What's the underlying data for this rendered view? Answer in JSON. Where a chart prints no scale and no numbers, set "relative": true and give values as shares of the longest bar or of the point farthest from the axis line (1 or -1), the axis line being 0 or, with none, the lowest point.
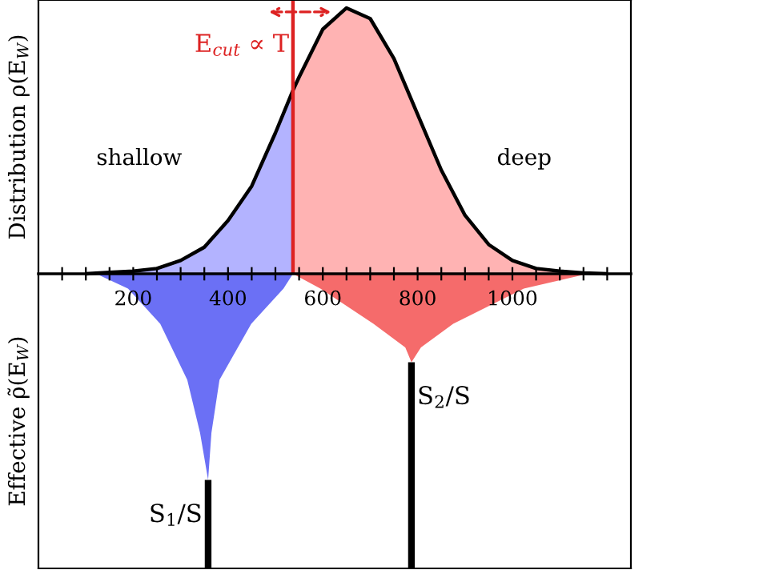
{
  "chart_data": [
    {
      "type": "area",
      "relative": true,
      "ylabel": "Distribution ρ(E$_{W}$)",
      "xlim": [
        0,
        1250
      ],
      "tick_labels": false,
      "grid": false,
      "legend": false,
      "series": [
        {
          "color": "#b3b3ff",
          "x": [
            100,
            150,
            200,
            250,
            300,
            350,
            400,
            450,
            500,
            537
          ],
          "values": [
            0,
            0.005,
            0.01,
            0.02,
            0.05,
            0.1,
            0.2,
            0.33,
            0.53,
            0.69
          ]
        },
        {
          "color": "#ffb3b3",
          "x": [
            537,
            550,
            600,
            650,
            700,
            750,
            800,
            850,
            900,
            950,
            1000,
            1050,
            1100,
            1150,
            1200
          ],
          "values": [
            0.69,
            0.74,
            0.92,
            1.0,
            0.96,
            0.81,
            0.6,
            0.39,
            0.22,
            0.11,
            0.05,
            0.02,
            0.01,
            0.003,
            0
          ]
        },
        {
          "type": "line",
          "color": "#000000",
          "x": [
            100,
            150,
            200,
            250,
            300,
            350,
            400,
            450,
            500,
            537,
            550,
            600,
            650,
            700,
            750,
            800,
            850,
            900,
            950,
            1000,
            1050,
            1100,
            1150,
            1200
          ],
          "values": [
            0,
            0.005,
            0.01,
            0.02,
            0.05,
            0.1,
            0.2,
            0.33,
            0.53,
            0.69,
            0.74,
            0.92,
            1.0,
            0.96,
            0.81,
            0.6,
            0.39,
            0.22,
            0.11,
            0.05,
            0.02,
            0.01,
            0.003,
            0
          ]
        }
      ],
      "ref_lines": [
        {
          "axis": "x",
          "value": 537,
          "label": "E$_{cut}$ ∝ T",
          "color": "#dd2222"
        }
      ],
      "annotations": [
        "shallow",
        "deep"
      ]
    },
    {
      "type": "area",
      "relative": true,
      "ylabel": "Effective ρ̃(E$_{W}$)",
      "xlim": [
        0,
        1250
      ],
      "xticks": [
        {
          "value": 50,
          "label": null
        },
        {
          "value": 100,
          "label": null
        },
        {
          "value": 150,
          "label": null
        },
        200,
        {
          "value": 250,
          "label": null
        },
        {
          "value": 300,
          "label": null
        },
        {
          "value": 350,
          "label": null
        },
        400,
        {
          "value": 450,
          "label": null
        },
        {
          "value": 500,
          "label": null
        },
        {
          "value": 550,
          "label": null
        },
        600,
        {
          "value": 650,
          "label": null
        },
        {
          "value": 700,
          "label": null
        },
        {
          "value": 750,
          "label": null
        },
        800,
        {
          "value": 850,
          "label": null
        },
        {
          "value": 900,
          "label": null
        },
        {
          "value": 950,
          "label": null
        },
        1000,
        {
          "value": 1050,
          "label": null
        },
        {
          "value": 1100,
          "label": null
        },
        {
          "value": 1150,
          "label": null
        },
        {
          "value": 1200,
          "label": null
        }
      ],
      "tick_labels": "x",
      "grid": false,
      "legend": false,
      "series": [
        {
          "color": "#6b70f5",
          "x": [
            122,
            189,
            257,
            314,
            341,
            358,
            365,
            382,
            449,
            517,
            537
          ],
          "values": [
            0,
            -0.05,
            -0.17,
            -0.36,
            -0.54,
            -0.7,
            -0.54,
            -0.36,
            -0.17,
            -0.05,
            0
          ]
        },
        {
          "color": "#f56b6b",
          "x": [
            537,
            595,
            707,
            774,
            787,
            807,
            875,
            1024,
            1159
          ],
          "values": [
            0,
            -0.05,
            -0.17,
            -0.25,
            -0.3,
            -0.25,
            -0.17,
            -0.05,
            0
          ]
        },
        {
          "type": "line",
          "color": "#000000",
          "x": [
            358,
            358
          ],
          "values": [
            -0.7,
            -1
          ]
        },
        {
          "type": "line",
          "color": "#000000",
          "x": [
            787,
            787
          ],
          "values": [
            -0.3,
            -1
          ]
        }
      ],
      "annotations": [
        {
          "text": "S$_{1}$/S",
          "x": 358,
          "y": -0.7
        },
        {
          "text": "S$_{2}$/S",
          "x": 787,
          "y": -0.3
        }
      ]
    }
  ]
}
